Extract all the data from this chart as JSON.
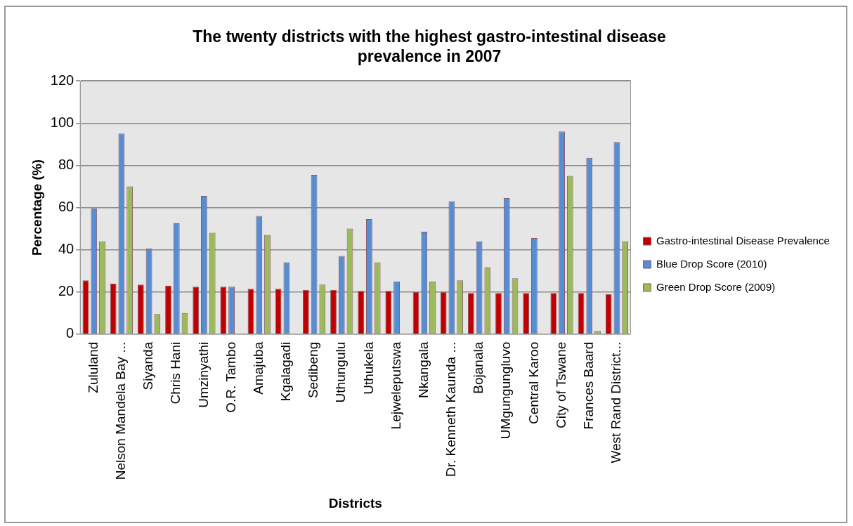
{
  "chart_data": {
    "type": "bar",
    "title": "The twenty districts with the highest gastro-intestinal disease prevalence in 2007",
    "xlabel": "Districts",
    "ylabel": "Percentage (%)",
    "categories": [
      "Zululand",
      "Nelson Mandela Bay ...",
      "Siyanda",
      "Chris Hani",
      "Umzinyathi",
      "O.R. Tambo",
      "Amajuba",
      "Kgalagadi",
      "Sedibeng",
      "Uthungulu",
      "Uthukela",
      "Lejweleputswa",
      "Nkangala",
      "Dr. Kenneth Kaunda ...",
      "Bojanala",
      "UMgungungluvo",
      "Central Karoo",
      "City of Tswane",
      "Frances Baard",
      "West Rand District..."
    ],
    "series": [
      {
        "name": "Gastro-intestinal Disease Prevalence",
        "color": "#c00000",
        "values": [
          25.5,
          24,
          23.5,
          23,
          22.5,
          22.5,
          21.5,
          21.5,
          21,
          21,
          20.5,
          20.5,
          20,
          20,
          19.5,
          19.5,
          19.5,
          19.5,
          19.5,
          19
        ]
      },
      {
        "name": "Blue Drop Score (2010)",
        "color": "#558ed5",
        "values": [
          59.5,
          95,
          40.5,
          52.5,
          65.5,
          22.5,
          56,
          34,
          75.5,
          37,
          54.5,
          25,
          48.5,
          63,
          44,
          64.5,
          45.5,
          96,
          83.5,
          91
        ]
      },
      {
        "name": "Green Drop Score (2009)",
        "color": "#9bbb59",
        "values": [
          44,
          70,
          9.5,
          10,
          48,
          null,
          47,
          null,
          23.5,
          50,
          34,
          null,
          25,
          25.5,
          31.5,
          26.5,
          null,
          75,
          1.5,
          44
        ]
      }
    ],
    "ylim": [
      0,
      120
    ],
    "yticks": [
      0,
      20,
      40,
      60,
      80,
      100,
      120
    ],
    "grid": "y",
    "legend": "right"
  }
}
